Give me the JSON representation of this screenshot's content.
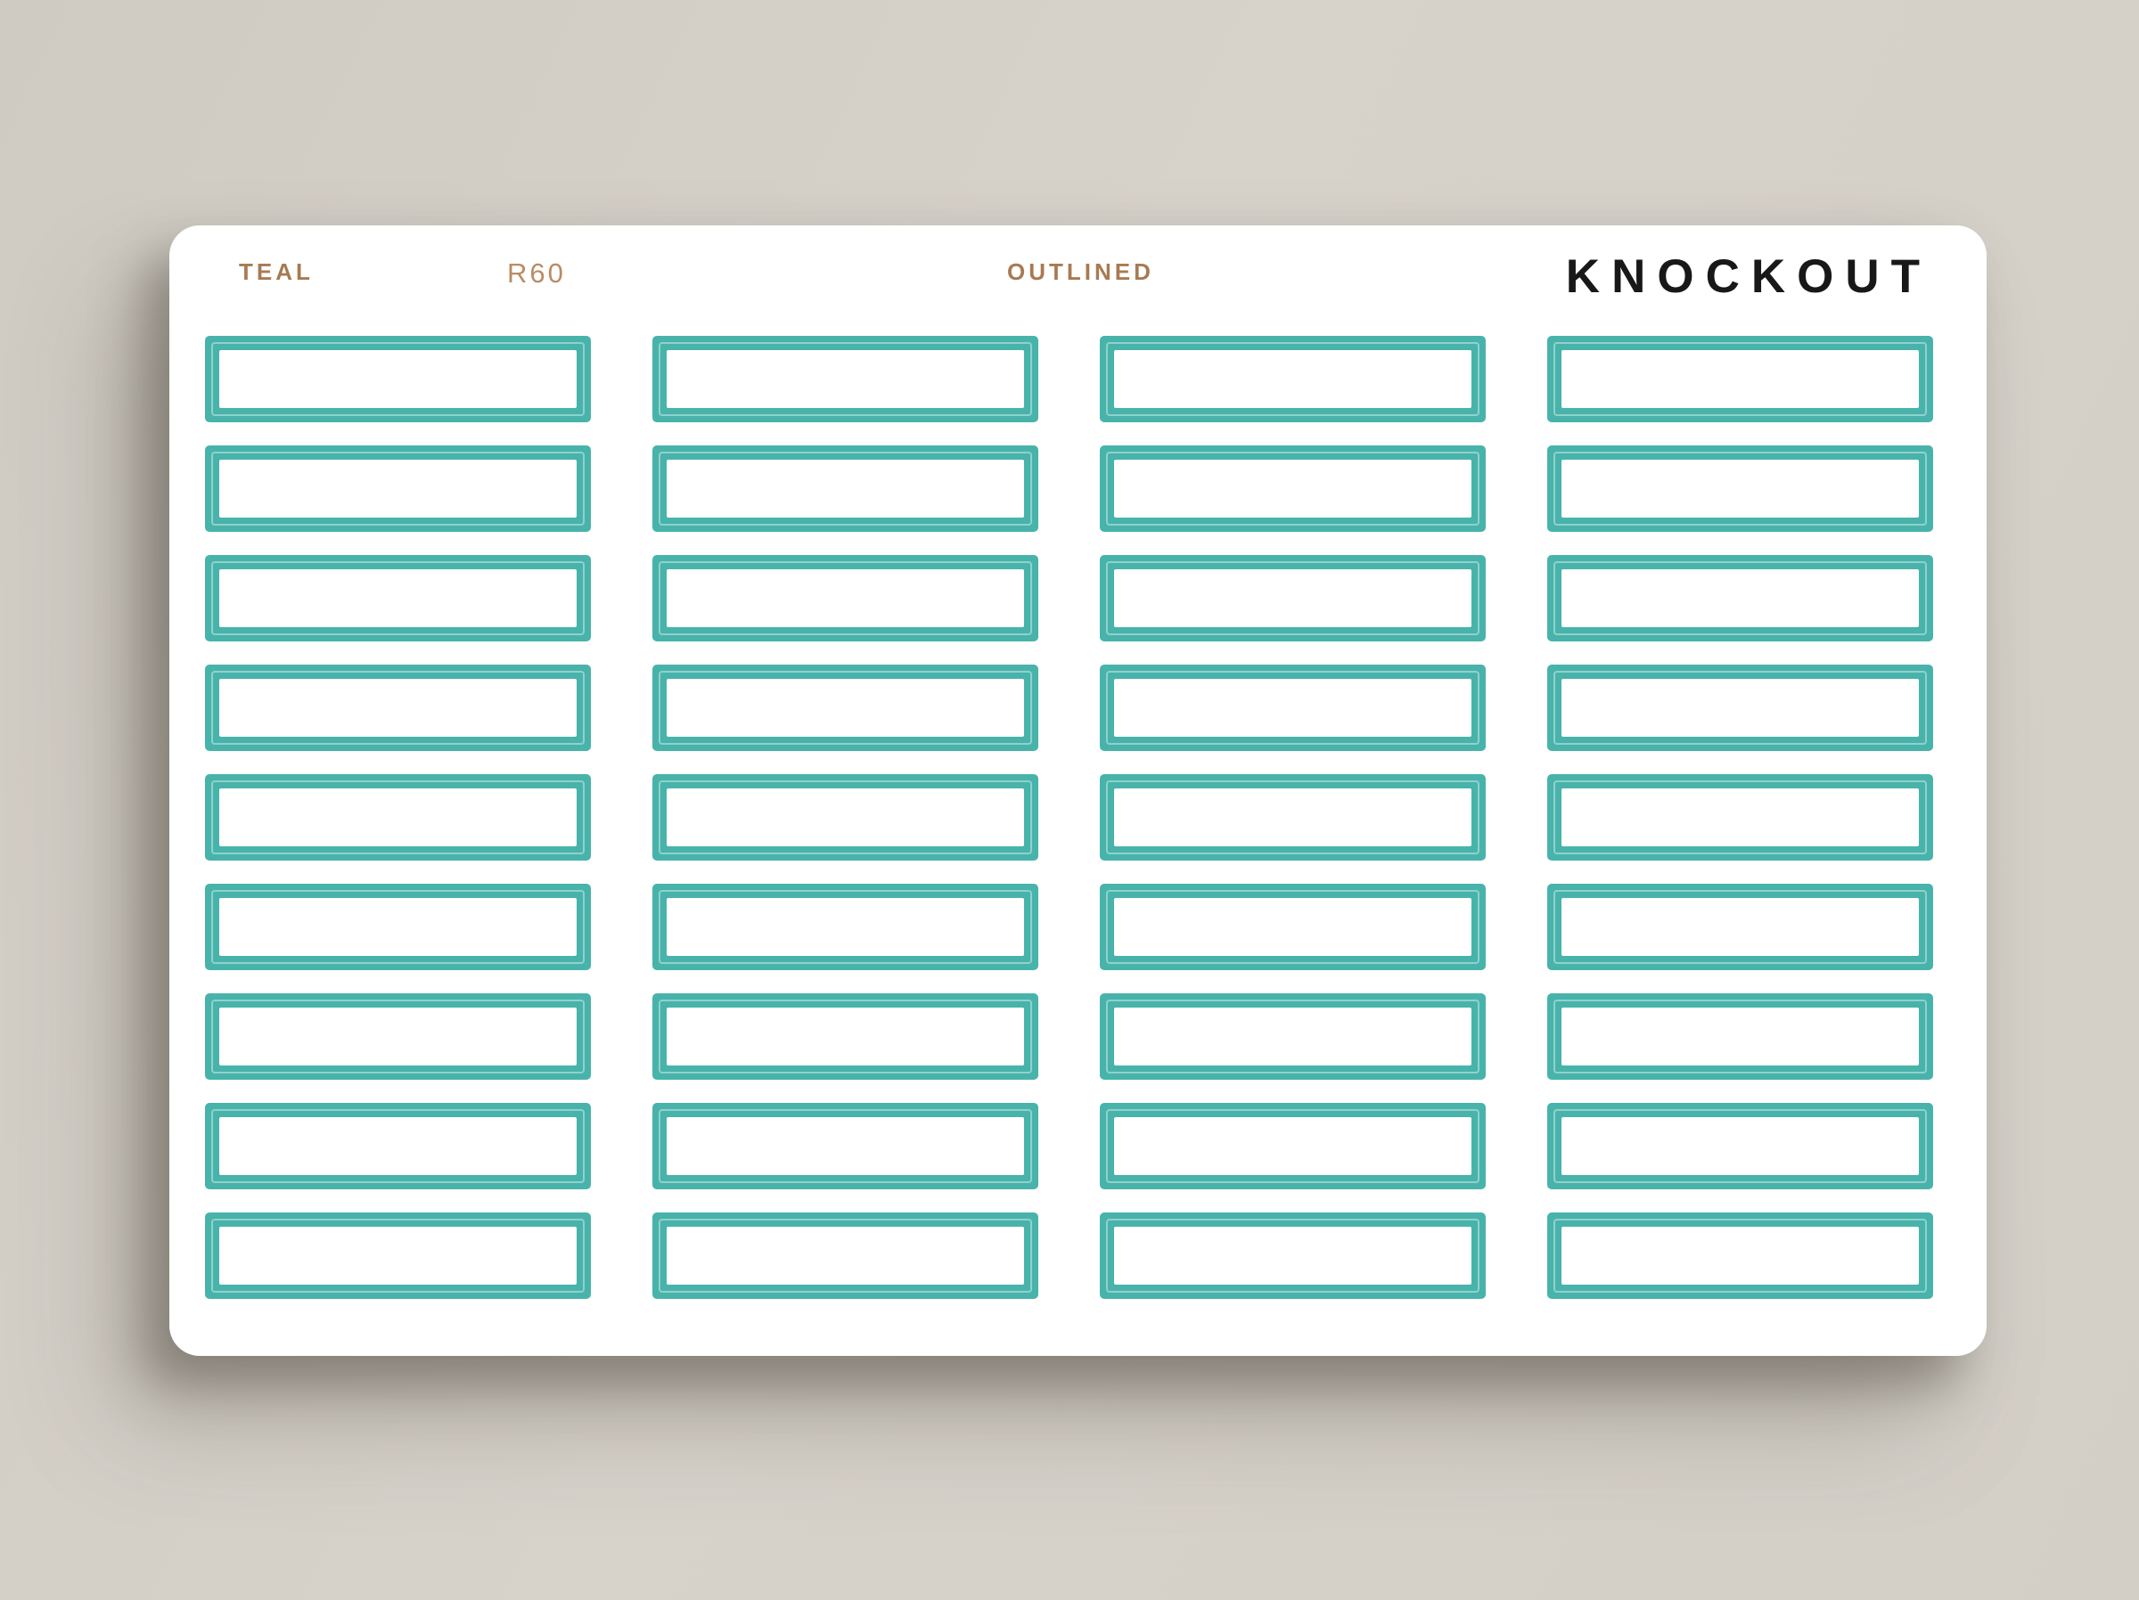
{
  "sheet": {
    "color_label": "TEAL",
    "sku": "R60",
    "style_label": "OUTLINED",
    "brand": "KNOCKOUT"
  },
  "grid": {
    "rows": 9,
    "columns": 4,
    "total_stickers": 36,
    "sticker_shape": "outlined-rounded-rectangle"
  },
  "colors": {
    "background": "#d4d0c8",
    "sheet": "#ffffff",
    "sticker_teal": "#48b3aa",
    "cut_line": "rgba(255,255,255,0.40)",
    "label_brown": "#a87a52",
    "sku_brown": "#b98c64",
    "brand_black": "#181818"
  }
}
